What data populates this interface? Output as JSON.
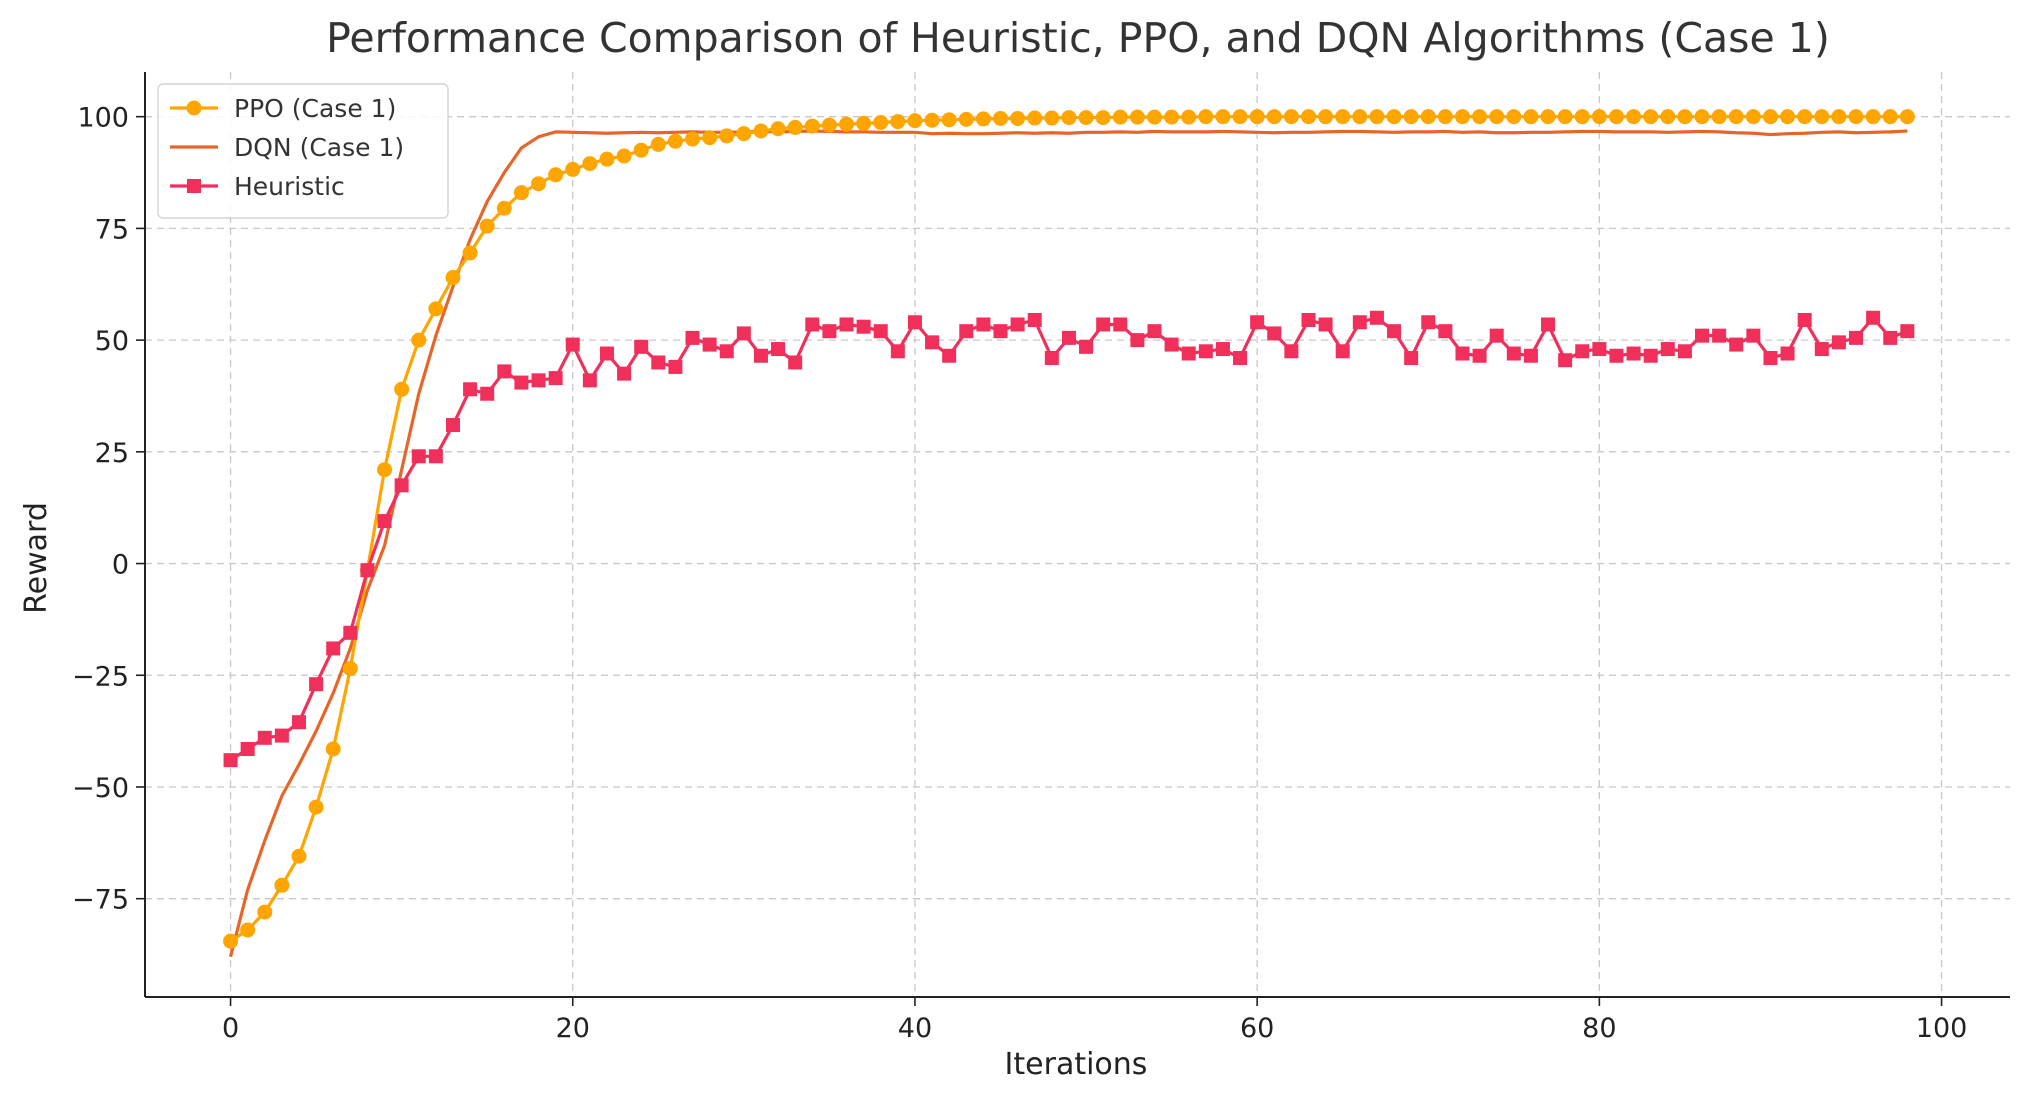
{
  "chart_data": {
    "type": "line",
    "title": "Performance Comparison of Heuristic, PPO, and DQN Algorithms (Case 1)",
    "xlabel": "Iterations",
    "ylabel": "Reward",
    "xlim": [
      -5,
      104
    ],
    "ylim": [
      -97,
      110
    ],
    "xticks": [
      0,
      20,
      40,
      60,
      80,
      100
    ],
    "yticks": [
      -75,
      -50,
      -25,
      0,
      25,
      50,
      75,
      100
    ],
    "xtick_labels": [
      "0",
      "20",
      "40",
      "60",
      "80",
      "100"
    ],
    "ytick_labels": [
      "−75",
      "−50",
      "−25",
      "0",
      "25",
      "50",
      "75",
      "100"
    ],
    "grid": true,
    "legend": "top-left",
    "series": [
      {
        "name": "PPO (Case 1)",
        "color": "#FFA500",
        "marker": "circle",
        "x_start": 0,
        "values": [
          -84.5,
          -82,
          -78,
          -72,
          -65.5,
          -54.5,
          -41.5,
          -23.5,
          -1.5,
          21,
          39,
          50,
          57,
          64,
          69.5,
          75.5,
          79.5,
          83,
          85,
          87,
          88.2,
          89.5,
          90.5,
          91.2,
          92.5,
          93.8,
          94.5,
          95,
          95.3,
          95.7,
          96.2,
          96.8,
          97.3,
          97.6,
          97.9,
          98.1,
          98.3,
          98.5,
          98.7,
          98.9,
          99.1,
          99.2,
          99.3,
          99.4,
          99.5,
          99.6,
          99.6,
          99.7,
          99.7,
          99.8,
          99.8,
          99.8,
          99.9,
          99.9,
          99.9,
          99.9,
          99.9,
          100,
          100,
          100,
          100,
          100,
          100,
          100,
          100,
          100,
          100,
          100,
          100,
          100,
          100,
          100,
          100,
          100,
          100,
          100,
          100,
          100,
          100,
          100,
          100,
          100,
          100,
          100,
          100,
          100,
          100,
          100,
          100,
          100,
          100,
          100,
          100,
          100,
          100,
          100,
          100,
          100,
          100
        ]
      },
      {
        "name": "DQN (Case 1)",
        "color": "#E8652A",
        "marker": "none",
        "x_start": 0,
        "values": [
          -88,
          -73,
          -62,
          -52,
          -45,
          -37.5,
          -29,
          -19,
          -6,
          4,
          21,
          38,
          51,
          62,
          72.5,
          81,
          87.5,
          93,
          95.5,
          96.6,
          96.5,
          96.4,
          96.3,
          96.4,
          96.5,
          96.4,
          96.5,
          96.6,
          96.5,
          96.5,
          96.6,
          96.7,
          96.6,
          96.7,
          96.8,
          96.7,
          96.6,
          96.6,
          96.5,
          96.5,
          96.5,
          96.2,
          96.3,
          96.2,
          96.2,
          96.3,
          96.4,
          96.3,
          96.4,
          96.3,
          96.5,
          96.5,
          96.6,
          96.5,
          96.7,
          96.6,
          96.6,
          96.6,
          96.7,
          96.6,
          96.5,
          96.4,
          96.5,
          96.5,
          96.6,
          96.7,
          96.7,
          96.6,
          96.5,
          96.6,
          96.6,
          96.7,
          96.5,
          96.6,
          96.4,
          96.4,
          96.5,
          96.5,
          96.6,
          96.7,
          96.7,
          96.6,
          96.6,
          96.6,
          96.5,
          96.6,
          96.7,
          96.6,
          96.4,
          96.3,
          96,
          96.2,
          96.3,
          96.5,
          96.6,
          96.4,
          96.5,
          96.6,
          96.8
        ]
      },
      {
        "name": "Heuristic",
        "color": "#F0305A",
        "marker": "square",
        "x_start": 0,
        "values": [
          -44,
          -41.5,
          -39,
          -38.5,
          -35.5,
          -27,
          -19,
          -15.5,
          -1.5,
          9.5,
          17.5,
          24,
          24,
          31,
          39,
          38,
          43,
          40.5,
          41,
          41.5,
          49,
          41,
          47,
          42.5,
          48.5,
          45,
          44,
          50.5,
          49,
          47.5,
          51.5,
          46.5,
          48,
          45,
          53.5,
          52,
          53.5,
          53,
          52,
          47.5,
          54,
          49.5,
          46.5,
          52,
          53.5,
          52,
          53.5,
          54.5,
          46,
          50.5,
          48.5,
          53.5,
          53.5,
          50,
          52,
          49,
          47,
          47.5,
          48,
          46,
          54,
          51.5,
          47.5,
          54.5,
          53.5,
          47.5,
          54,
          55,
          52,
          46,
          54,
          52,
          47,
          46.5,
          51,
          47,
          46.5,
          53.5,
          45.5,
          47.5,
          48,
          46.5,
          47,
          46.5,
          48,
          47.5,
          51,
          51,
          49,
          51,
          46,
          47,
          54.5,
          48,
          49.5,
          50.5,
          55,
          50.5,
          52
        ]
      }
    ]
  }
}
